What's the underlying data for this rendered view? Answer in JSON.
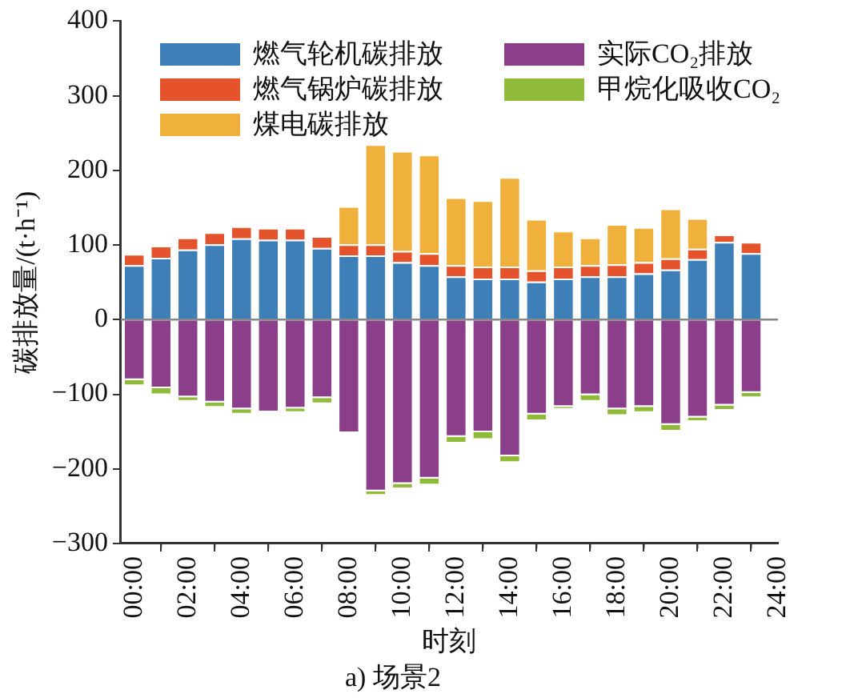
{
  "chart_data": {
    "type": "bar",
    "stacked": true,
    "title": "a) 场景2",
    "xlabel": "时刻",
    "ylabel": "碳排放量/(t·h⁻¹)",
    "x": [
      0,
      1,
      2,
      3,
      4,
      5,
      6,
      7,
      8,
      9,
      10,
      11,
      12,
      13,
      14,
      15,
      16,
      17,
      18,
      19,
      20,
      21,
      22,
      23
    ],
    "xlim": [
      -0.5,
      24
    ],
    "xticks": [
      {
        "value": 0,
        "label": "00:00"
      },
      {
        "value": 2,
        "label": "02:00"
      },
      {
        "value": 4,
        "label": "04:00"
      },
      {
        "value": 6,
        "label": "06:00"
      },
      {
        "value": 8,
        "label": "08:00"
      },
      {
        "value": 10,
        "label": "10:00"
      },
      {
        "value": 12,
        "label": "12:00"
      },
      {
        "value": 14,
        "label": "14:00"
      },
      {
        "value": 16,
        "label": "16:00"
      },
      {
        "value": 18,
        "label": "18:00"
      },
      {
        "value": 20,
        "label": "20:00"
      },
      {
        "value": 22,
        "label": "22:00"
      },
      {
        "value": 24,
        "label": "24:00"
      }
    ],
    "ylim": [
      -300,
      400
    ],
    "yticks": [
      -300,
      -200,
      -100,
      0,
      100,
      200,
      300,
      400
    ],
    "grid": false,
    "legend": "top",
    "ref_lines": [
      {
        "axis": "y",
        "value": 0,
        "color": "#888888"
      }
    ],
    "series": [
      {
        "name": "燃气轮机碳排放",
        "color": "#3f7fb8",
        "values": [
          73,
          83,
          94,
          101,
          109,
          107,
          107,
          96,
          86,
          86,
          77,
          73,
          58,
          55,
          55,
          51,
          55,
          58,
          58,
          62,
          67,
          81,
          104,
          89
        ]
      },
      {
        "name": "燃气锅炉碳排放",
        "color": "#e5532d",
        "values": [
          15,
          16,
          16,
          16,
          16,
          16,
          16,
          16,
          15,
          15,
          15,
          16,
          15,
          16,
          16,
          15,
          16,
          15,
          16,
          15,
          15,
          14,
          10,
          15
        ]
      },
      {
        "name": "煤电碳排放",
        "color": "#f0b13c",
        "values": [
          null,
          null,
          null,
          null,
          null,
          null,
          null,
          null,
          51,
          134,
          134,
          132,
          91,
          89,
          120,
          69,
          48,
          37,
          54,
          47,
          67,
          41,
          null,
          null
        ]
      },
      {
        "name": "实际CO₂排放",
        "color": "#8b3f8b",
        "values": [
          -81,
          -92,
          -104,
          -111,
          -120,
          -124,
          -119,
          -105,
          -152,
          -230,
          -220,
          -213,
          -157,
          -151,
          -183,
          -127,
          -117,
          -101,
          -120,
          -117,
          -141,
          -131,
          -115,
          -98
        ]
      },
      {
        "name": "甲烷化吸收CO₂",
        "color": "#8fba3a",
        "values": [
          -8,
          -9,
          -6,
          -7,
          -7,
          null,
          -6,
          -8,
          null,
          -6,
          -7,
          -9,
          -9,
          -10,
          -9,
          -9,
          -3,
          -9,
          -9,
          -8,
          -9,
          -6,
          -7,
          -7
        ]
      }
    ]
  }
}
